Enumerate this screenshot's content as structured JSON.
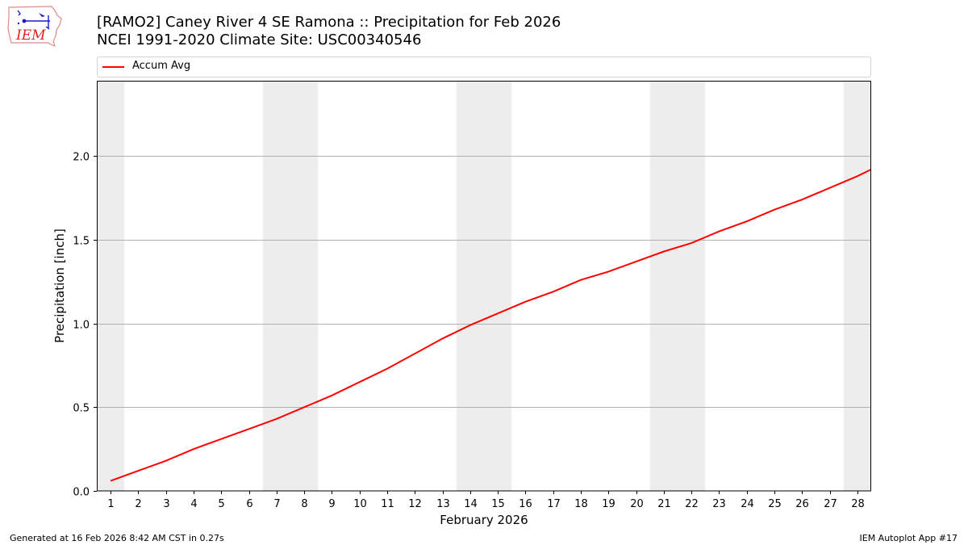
{
  "header": {
    "title_line1": "[RAMO2] Caney River 4 SE Ramona :: Precipitation for Feb 2026",
    "title_line2": "NCEI 1991-2020 Climate Site: USC00340546",
    "logo_text": "IEM"
  },
  "legend": {
    "items": [
      {
        "label": "Accum Avg",
        "color": "#ff0000"
      }
    ]
  },
  "footer": {
    "generated": "Generated at 16 Feb 2026 8:42 AM CST in 0.27s",
    "app": "IEM Autoplot App #17"
  },
  "colors": {
    "line": "#ff0000",
    "weekend_shade": "#ededed",
    "grid": "#b0b0b0"
  },
  "chart_data": {
    "type": "line",
    "title": "[RAMO2] Caney River 4 SE Ramona :: Precipitation for Feb 2026",
    "subtitle": "NCEI 1991-2020 Climate Site: USC00340546",
    "xlabel": "February 2026",
    "ylabel": "Precipitation [inch]",
    "xlim": [
      0.5,
      28.5
    ],
    "ylim": [
      0,
      2.45
    ],
    "yticks": [
      0.0,
      0.5,
      1.0,
      1.5,
      2.0
    ],
    "ytick_labels": [
      "0.0",
      "0.5",
      "1.0",
      "1.5",
      "2.0"
    ],
    "xticks": [
      1,
      2,
      3,
      4,
      5,
      6,
      7,
      8,
      9,
      10,
      11,
      12,
      13,
      14,
      15,
      16,
      17,
      18,
      19,
      20,
      21,
      22,
      23,
      24,
      25,
      26,
      27,
      28
    ],
    "grid": "y",
    "legend_position": "top",
    "weekend_spans": [
      [
        0.5,
        1.5
      ],
      [
        6.5,
        8.5
      ],
      [
        13.5,
        15.5
      ],
      [
        20.5,
        22.5
      ],
      [
        27.5,
        28.5
      ]
    ],
    "series": [
      {
        "name": "Accum Avg",
        "color": "#ff0000",
        "x": [
          1,
          2,
          3,
          4,
          5,
          6,
          7,
          8,
          9,
          10,
          11,
          12,
          13,
          14,
          15,
          16,
          17,
          18,
          19,
          20,
          21,
          22,
          23,
          24,
          25,
          26,
          27,
          28,
          28.5
        ],
        "values": [
          0.06,
          0.12,
          0.18,
          0.25,
          0.31,
          0.37,
          0.43,
          0.5,
          0.57,
          0.65,
          0.73,
          0.82,
          0.91,
          0.99,
          1.06,
          1.13,
          1.19,
          1.26,
          1.31,
          1.37,
          1.43,
          1.48,
          1.55,
          1.61,
          1.68,
          1.74,
          1.81,
          1.88,
          1.92
        ]
      }
    ]
  }
}
